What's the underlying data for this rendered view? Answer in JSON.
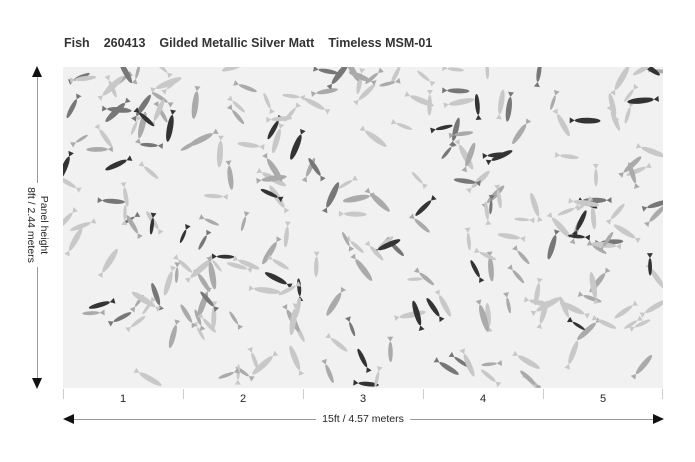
{
  "title": {
    "name": "Fish",
    "code": "260413",
    "finish": "Gilded Metallic Silver Matt",
    "collection": "Timeless MSM-01"
  },
  "height_label": {
    "line1": "Panel height",
    "line2": "8ft / 2.44 meters"
  },
  "width_label": "15ft  / 4.57 meters",
  "panels": [
    "1",
    "2",
    "3",
    "4",
    "5"
  ],
  "mural": {
    "subject": "school of fish",
    "background_color": "#f1f1f1"
  }
}
